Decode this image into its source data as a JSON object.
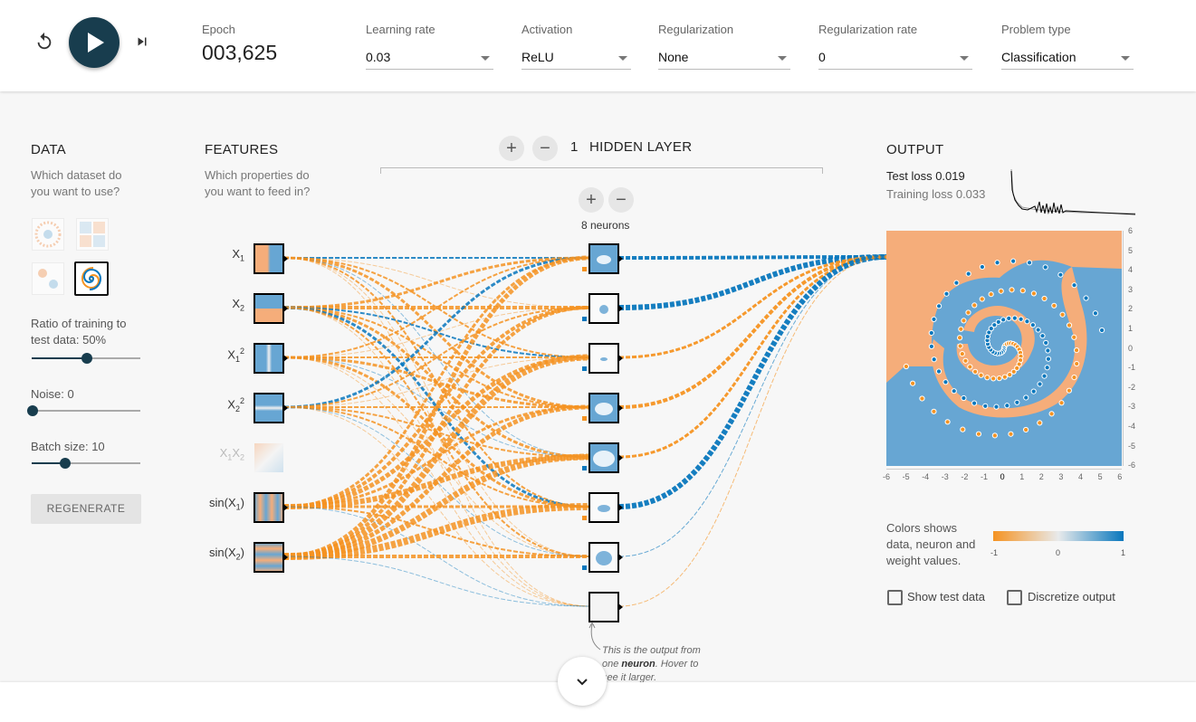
{
  "controls": {
    "epoch_label": "Epoch",
    "epoch_value": "003,625",
    "learning_rate": {
      "label": "Learning rate",
      "value": "0.03"
    },
    "activation": {
      "label": "Activation",
      "value": "ReLU"
    },
    "regularization": {
      "label": "Regularization",
      "value": "None"
    },
    "regularization_rate": {
      "label": "Regularization rate",
      "value": "0"
    },
    "problem_type": {
      "label": "Problem type",
      "value": "Classification"
    },
    "icons": [
      "reset-icon",
      "play-icon",
      "step-icon"
    ]
  },
  "data_panel": {
    "title": "DATA",
    "subtitle_line1": "Which dataset do",
    "subtitle_line2": "you want to use?",
    "ratio_label_line1": "Ratio of training to",
    "ratio_label_line2": "test data:  50%",
    "ratio_value": 0.5,
    "noise_label": "Noise:  0",
    "noise_value": 0,
    "batch_label": "Batch size:  10",
    "batch_value": 0.3,
    "regenerate": "REGENERATE"
  },
  "features_panel": {
    "title": "FEATURES",
    "subtitle_line1": "Which properties do",
    "subtitle_line2": "you want to feed in?",
    "features": [
      {
        "base": "X",
        "sub": "1",
        "sup": "",
        "active": true
      },
      {
        "base": "X",
        "sub": "2",
        "sup": "",
        "active": true
      },
      {
        "base": "X",
        "sub": "1",
        "sup": "2",
        "active": true
      },
      {
        "base": "X",
        "sub": "2",
        "sup": "2",
        "active": true
      },
      {
        "base": "X",
        "sub": "1",
        "sup": "",
        "base2": "X",
        "sub2": "2",
        "active": false
      },
      {
        "base": "sin(X",
        "sub": "1",
        "close": ")",
        "active": true
      },
      {
        "base": "sin(X",
        "sub": "2",
        "close": ")",
        "active": true
      }
    ]
  },
  "hidden": {
    "count": "1",
    "label": "HIDDEN LAYER",
    "plus": "+",
    "minus": "−",
    "neurons_label": "8 neurons",
    "note_pre": "This is the output from one ",
    "note_bold": "neuron",
    "note_post": ". Hover to see it larger."
  },
  "output_panel": {
    "title": "OUTPUT",
    "test_loss_label": "Test loss",
    "test_loss_value": "0.019",
    "training_loss_label": "Training loss",
    "training_loss_value": "0.033",
    "y_ticks": [
      "6",
      "5",
      "4",
      "3",
      "2",
      "1",
      "0",
      "-1",
      "-2",
      "-3",
      "-4",
      "-5",
      "-6"
    ],
    "x_ticks": [
      "-6",
      "-5",
      "-4",
      "-3",
      "-2",
      "-1",
      "0",
      "1",
      "2",
      "3",
      "4",
      "5",
      "6"
    ],
    "legend_line1": "Colors shows",
    "legend_line2": "data, neuron and",
    "legend_line3": "weight values.",
    "legend_ticks": [
      "-1",
      "0",
      "1"
    ],
    "show_test_data": "Show test data",
    "discretize": "Discretize output"
  },
  "colors": {
    "orange": "#f59322",
    "blue": "#0877bd",
    "bg_orange": "#f5ad7a",
    "bg_blue": "#67a6d3",
    "dark": "#183d4e"
  }
}
